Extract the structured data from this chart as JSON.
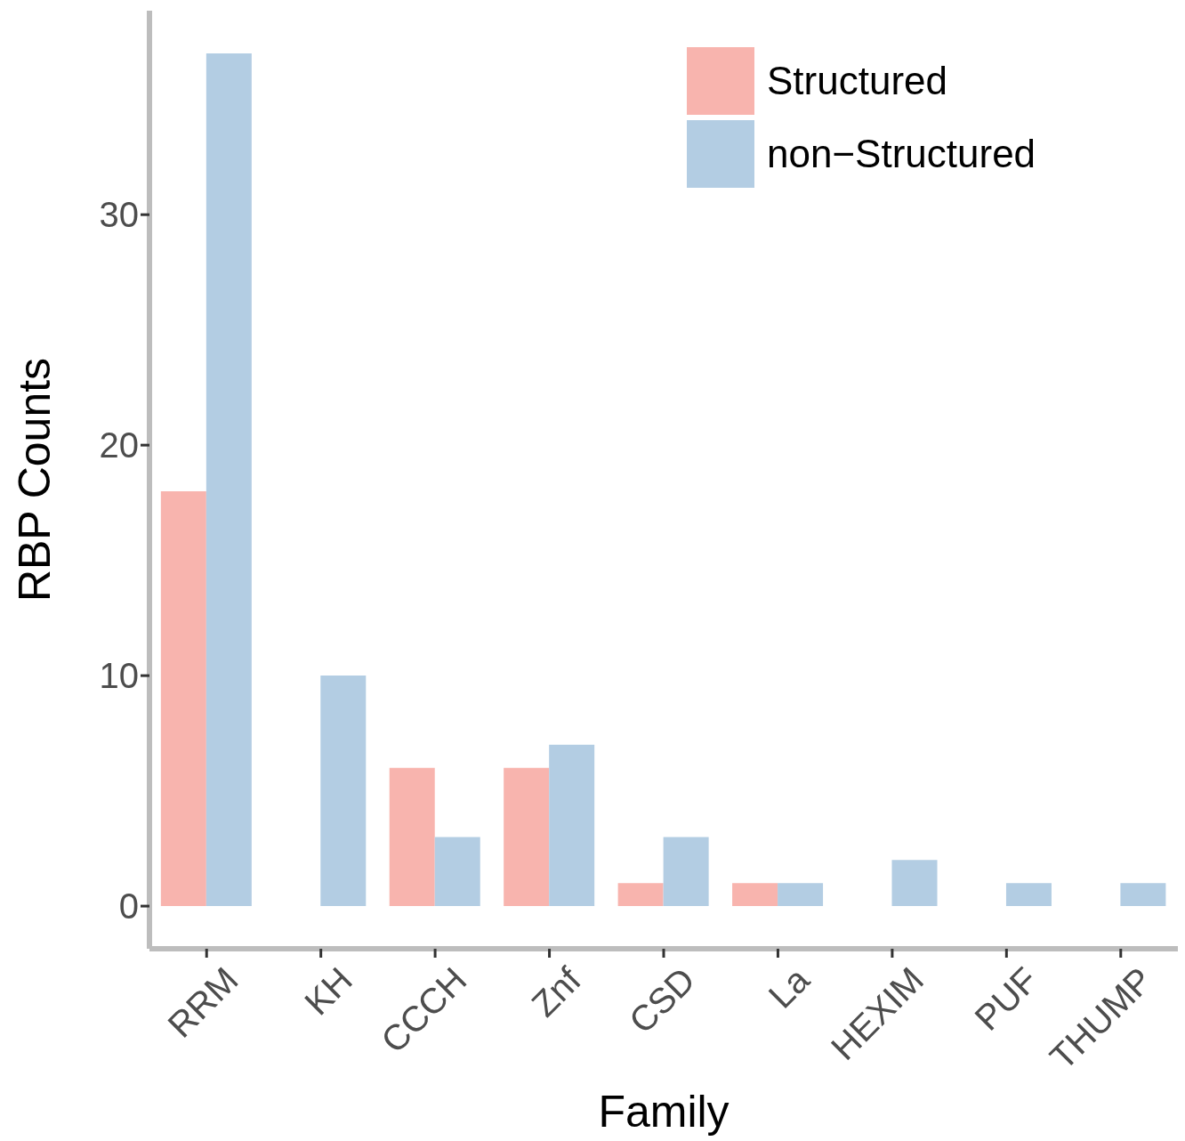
{
  "chart_data": {
    "type": "bar",
    "xlabel": "Family",
    "ylabel": "RBP Counts",
    "categories": [
      "RRM",
      "KH",
      "CCCH",
      "Znf",
      "CSD",
      "La",
      "HEXIM",
      "PUF",
      "THUMP"
    ],
    "series": [
      {
        "name": "Structured",
        "color": "#f8b4ae",
        "values": [
          18,
          0,
          6,
          6,
          1,
          1,
          0,
          0,
          0
        ]
      },
      {
        "name": "non−Structured",
        "color": "#b3cde3",
        "values": [
          37,
          10,
          3,
          7,
          3,
          1,
          2,
          1,
          1
        ]
      }
    ],
    "ylim": [
      -1.85,
      38.85
    ],
    "yticks": [
      0,
      10,
      20,
      30
    ],
    "grid": false,
    "legend": "top right"
  }
}
